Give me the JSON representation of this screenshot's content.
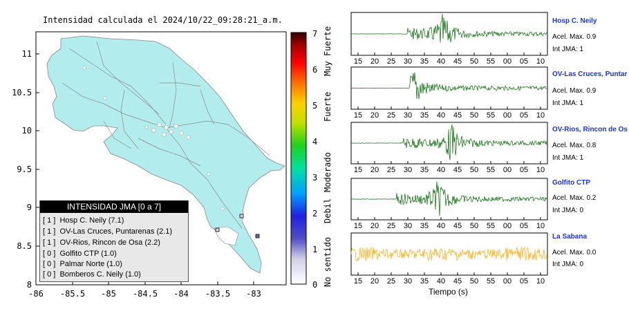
{
  "title": "Intensidad calculada el 2024/10/22_09:28:21_a.m.",
  "chart_data": [
    {
      "type": "map",
      "xlim": [
        -86,
        -82.6
      ],
      "ylim": [
        8,
        11.3
      ],
      "x_ticks": [
        "-86",
        "-85.5",
        "-85",
        "-84.5",
        "-84",
        "-83.5",
        "-83"
      ],
      "y_ticks": [
        "11",
        "10.5",
        "10",
        "9.5",
        "9",
        "8.5",
        "8"
      ],
      "land_color": "#b3ecec",
      "stations": [
        {
          "lon": -83.15,
          "lat": 8.65,
          "intensity": 1
        },
        {
          "lon": -83.5,
          "lat": 8.69,
          "intensity": 0
        },
        {
          "lon": -83.13,
          "lat": 8.88,
          "intensity": 0
        }
      ]
    },
    {
      "type": "colorbar",
      "range": [
        0,
        7
      ],
      "ticks": [
        "0",
        "1",
        "2",
        "3",
        "4",
        "5",
        "6",
        "7"
      ],
      "labels": [
        "No sentido",
        "Debil",
        "Moderado",
        "Fuerte",
        "Muy Fuerte"
      ]
    },
    {
      "type": "line",
      "xlabel": "Tiempo (s)",
      "x_ticks": [
        "15",
        "20",
        "25",
        "30",
        "35",
        "40",
        "45",
        "50",
        "55",
        "00",
        "05",
        "10"
      ],
      "series": [
        {
          "name": "Hosp C. Neily",
          "color": "#006400",
          "onset_tick": 3,
          "peak_tick": 5.1,
          "amplitude": 0.9
        },
        {
          "name": "OV-Las Cruces, Puntar",
          "color": "#006400",
          "onset_tick": 3.1,
          "peak_tick": 3.4,
          "amplitude": 0.9
        },
        {
          "name": "OV-Rios, Rincon de Os",
          "color": "#006400",
          "onset_tick": 2.7,
          "peak_tick": 5.6,
          "amplitude": 0.8
        },
        {
          "name": "Golfito CTP",
          "color": "#006400",
          "onset_tick": 2.3,
          "peak_tick": 4.8,
          "amplitude": 0.2
        },
        {
          "name": "La Sabana",
          "color": "#ffa500",
          "onset_tick": 0,
          "peak_tick": 0,
          "amplitude": 0.0
        }
      ]
    }
  ],
  "legend": {
    "header": "INTENSIDAD JMA [0 a 7]",
    "rows": [
      "[ 1 ]  Hosp C. Neily (7.1)",
      "[ 1 ]  OV-Las Cruces, Puntarenas (2.1)",
      "[ 1 ]  OV-Rios, Rincon de Osa (2.2)",
      "[ 0 ]  Golfito CTP (1.0)",
      "[ 0 ]  Palmar Norte (1.0)",
      "[ 0 ]  Bomberos C. Neily (1.0)"
    ]
  },
  "stations_panel": [
    {
      "name": "Hosp C. Neily",
      "acel": "Acel. Max. 0.9",
      "int": "Int JMA: 1"
    },
    {
      "name": "OV-Las Cruces, Puntar",
      "acel": "Acel. Max. 0.9",
      "int": "Int JMA: 1"
    },
    {
      "name": "OV-Rios, Rincon de Os",
      "acel": "Acel. Max. 0.8",
      "int": "Int JMA: 1"
    },
    {
      "name": "Golfito CTP",
      "acel": "Acel. Max. 0.2",
      "int": "Int JMA: 0"
    },
    {
      "name": "La Sabana",
      "acel": "Acel. Max. 0.0",
      "int": "Int JMA: 0"
    }
  ]
}
